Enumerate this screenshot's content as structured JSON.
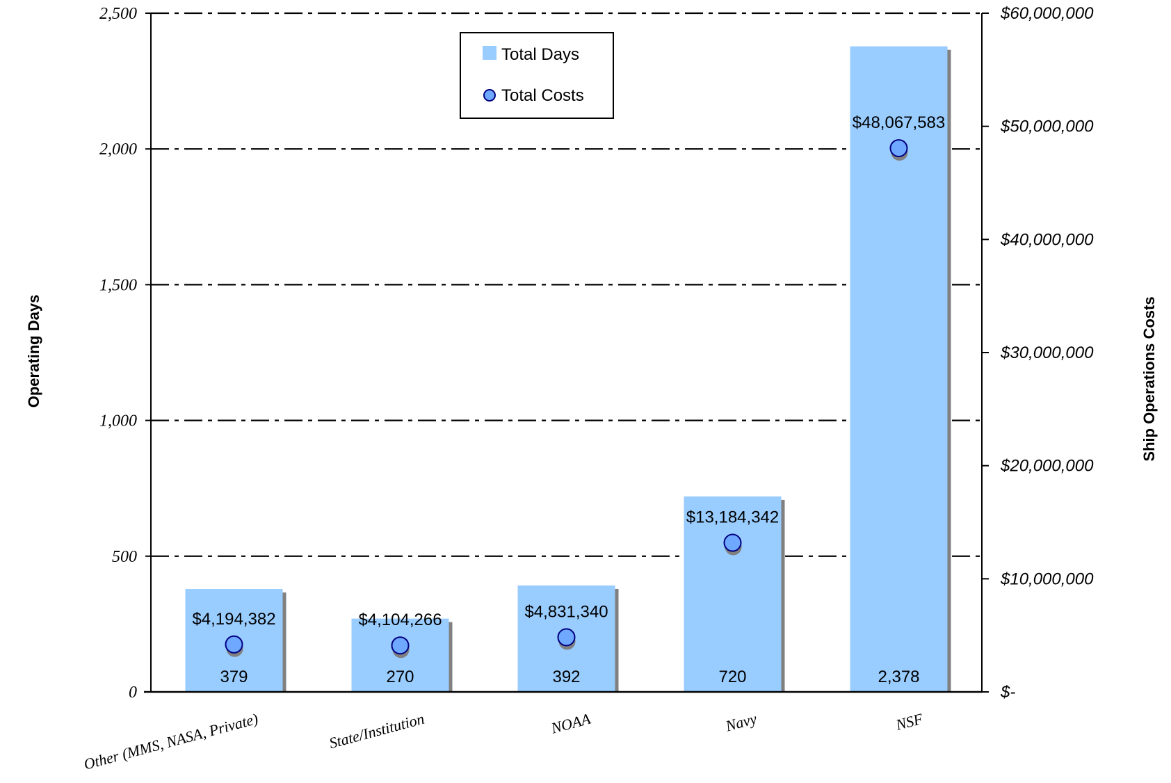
{
  "chart_data": {
    "type": "bar",
    "categories": [
      "Other (MMS, NASA, Private)",
      "State/Institution",
      "NOAA",
      "Navy",
      "NSF"
    ],
    "series": [
      {
        "name": "Total Days",
        "type": "bar",
        "axis": "left",
        "values": [
          379,
          270,
          392,
          720,
          2378
        ],
        "labels": [
          "379",
          "270",
          "392",
          "720",
          "2,378"
        ]
      },
      {
        "name": "Total Costs",
        "type": "scatter",
        "axis": "right",
        "values": [
          4194382,
          4104266,
          4831340,
          13184342,
          48067583
        ],
        "labels": [
          "$4,194,382",
          "$4,104,266",
          "$4,831,340",
          "$13,184,342",
          "$48,067,583"
        ]
      }
    ],
    "ylabel": "Operating Days",
    "y2label": "Ship Operations Costs",
    "ylim": [
      0,
      2500
    ],
    "y2lim": [
      0,
      60000000
    ],
    "yticks": [
      0,
      500,
      1000,
      1500,
      2000,
      2500
    ],
    "yticklabels": [
      "0",
      "500",
      "1,000",
      "1,500",
      "2,000",
      "2,500"
    ],
    "y2ticks": [
      0,
      10000000,
      20000000,
      30000000,
      40000000,
      50000000,
      60000000
    ],
    "y2ticklabels": [
      "$-",
      "$10,000,000",
      "$20,000,000",
      "$30,000,000",
      "$40,000,000",
      "$50,000,000",
      "$60,000,000"
    ],
    "grid": true,
    "legend": "top-center",
    "colors": {
      "bar": "#99ccff",
      "bar_shadow": "#808080",
      "marker_fill": "#6fa8ff",
      "marker_stroke": "#000080",
      "gridline": "#000000"
    }
  }
}
